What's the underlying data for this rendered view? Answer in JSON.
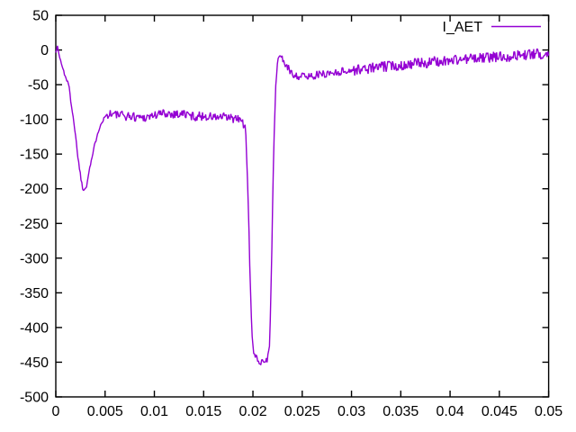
{
  "chart_data": {
    "type": "line",
    "title": "",
    "xlabel": "",
    "ylabel": "",
    "xlim": [
      0,
      0.05
    ],
    "ylim": [
      -500,
      50
    ],
    "grid": false,
    "legend_position": "top-right-inside",
    "background_color": "#ffffff",
    "frame_color": "#000000",
    "text_color": "#000000",
    "x_ticks": [
      0,
      0.005,
      0.01,
      0.015,
      0.02,
      0.025,
      0.03,
      0.035,
      0.04,
      0.045,
      0.05
    ],
    "x_tick_labels": [
      "0",
      "0.005",
      "0.01",
      "0.015",
      "0.02",
      "0.025",
      "0.03",
      "0.035",
      "0.04",
      "0.045",
      "0.05"
    ],
    "y_ticks": [
      50,
      0,
      -50,
      -100,
      -150,
      -200,
      -250,
      -300,
      -350,
      -400,
      -450,
      -500
    ],
    "y_tick_labels": [
      "50",
      "0",
      "-50",
      "-100",
      "-150",
      "-200",
      "-250",
      "-300",
      "-350",
      "-400",
      "-450",
      "-500"
    ],
    "series": [
      {
        "name": "I_AET",
        "color": "#9400d3",
        "line_width": 1.4,
        "sample_step": 8e-05,
        "noise_seed": 1337,
        "noise_segments": [
          {
            "to": 0.0004,
            "amp": 6
          },
          {
            "to": 0.0052,
            "amp": 3
          },
          {
            "to": 0.0191,
            "amp": 7
          },
          {
            "to": 0.0202,
            "amp": 3
          },
          {
            "to": 0.0216,
            "amp": 7
          },
          {
            "to": 0.0228,
            "amp": 2
          },
          {
            "to": 0.03,
            "amp": 6
          },
          {
            "to": 0.05,
            "amp": 8
          }
        ],
        "keypoints": [
          [
            0.0,
            0
          ],
          [
            0.0001,
            5
          ],
          [
            0.0003,
            -4
          ],
          [
            0.0006,
            -22
          ],
          [
            0.0009,
            -35
          ],
          [
            0.0013,
            -50
          ],
          [
            0.0018,
            -100
          ],
          [
            0.0023,
            -160
          ],
          [
            0.0026,
            -190
          ],
          [
            0.0028,
            -203
          ],
          [
            0.0031,
            -196
          ],
          [
            0.0034,
            -172
          ],
          [
            0.0038,
            -147
          ],
          [
            0.0042,
            -121
          ],
          [
            0.0046,
            -105
          ],
          [
            0.005,
            -96
          ],
          [
            0.0054,
            -91
          ],
          [
            0.006,
            -93
          ],
          [
            0.007,
            -95
          ],
          [
            0.008,
            -96
          ],
          [
            0.009,
            -97
          ],
          [
            0.01,
            -94
          ],
          [
            0.011,
            -91
          ],
          [
            0.012,
            -92
          ],
          [
            0.013,
            -92
          ],
          [
            0.014,
            -96
          ],
          [
            0.015,
            -95
          ],
          [
            0.016,
            -97
          ],
          [
            0.017,
            -97
          ],
          [
            0.018,
            -99
          ],
          [
            0.0188,
            -101
          ],
          [
            0.0192,
            -110
          ],
          [
            0.0193,
            -130
          ],
          [
            0.0195,
            -210
          ],
          [
            0.0197,
            -320
          ],
          [
            0.0199,
            -410
          ],
          [
            0.0201,
            -440
          ],
          [
            0.0205,
            -446
          ],
          [
            0.021,
            -448
          ],
          [
            0.0215,
            -445
          ],
          [
            0.0217,
            -425
          ],
          [
            0.0219,
            -300
          ],
          [
            0.0221,
            -150
          ],
          [
            0.0223,
            -55
          ],
          [
            0.0225,
            -16
          ],
          [
            0.0227,
            -7
          ],
          [
            0.023,
            -13
          ],
          [
            0.0235,
            -26
          ],
          [
            0.024,
            -34
          ],
          [
            0.0247,
            -38
          ],
          [
            0.0255,
            -38
          ],
          [
            0.0265,
            -36
          ],
          [
            0.0275,
            -34
          ],
          [
            0.0285,
            -32
          ],
          [
            0.0295,
            -30
          ],
          [
            0.031,
            -28
          ],
          [
            0.0325,
            -25
          ],
          [
            0.034,
            -23
          ],
          [
            0.0355,
            -21
          ],
          [
            0.037,
            -19
          ],
          [
            0.0385,
            -17
          ],
          [
            0.04,
            -15
          ],
          [
            0.0415,
            -13
          ],
          [
            0.043,
            -12
          ],
          [
            0.0445,
            -10
          ],
          [
            0.046,
            -9
          ],
          [
            0.0475,
            -7
          ],
          [
            0.049,
            -6
          ],
          [
            0.05,
            -5
          ]
        ]
      }
    ]
  },
  "legend": {
    "label": "I_AET"
  }
}
